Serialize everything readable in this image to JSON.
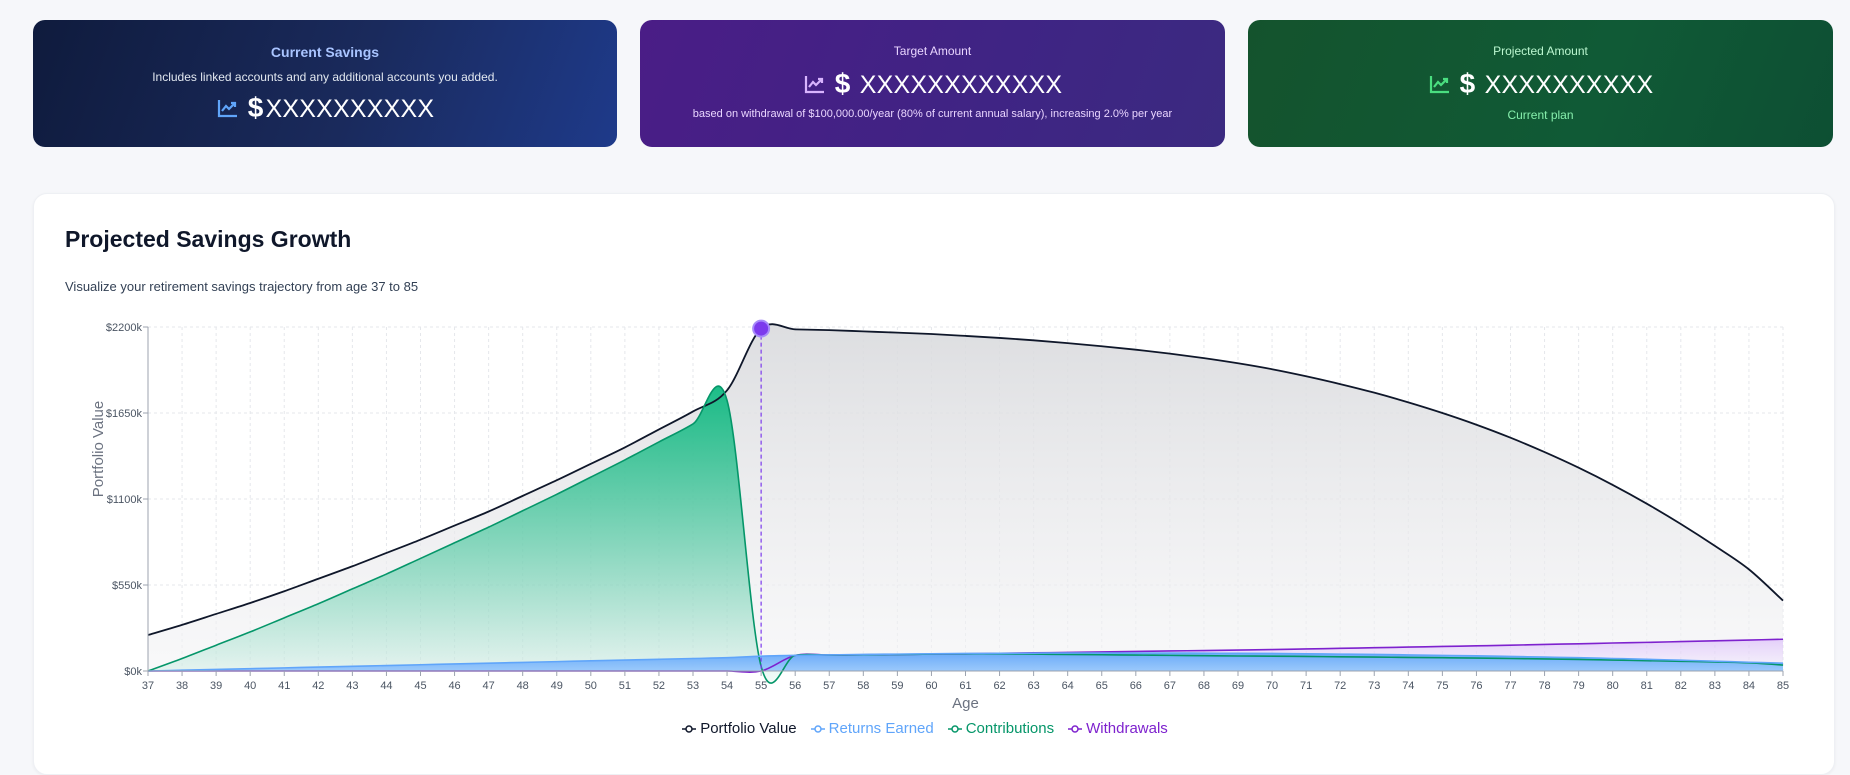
{
  "cards": {
    "current": {
      "title": "Current Savings",
      "subtitle": "Includes linked accounts and any additional accounts you added.",
      "dollar": "$",
      "amount": "XXXXXXXXXX",
      "icon": "trending-up-icon",
      "icon_color": "#60a5fa"
    },
    "target": {
      "title": "Target Amount",
      "dollar": "$",
      "amount": "XXXXXXXXXXXX",
      "subtitle": "based on withdrawal of $100,000.00/year (80% of current annual salary), increasing 2.0% per year",
      "icon": "trending-up-icon",
      "icon_color": "#d8b4fe"
    },
    "projected": {
      "title": "Projected Amount",
      "dollar": "$",
      "amount": "XXXXXXXXXX",
      "subtitle": "Current plan",
      "icon": "trending-up-icon",
      "icon_color": "#4ade80"
    }
  },
  "panel": {
    "title": "Projected Savings Growth",
    "description": "Visualize your retirement savings trajectory from age 37 to 85"
  },
  "chart_data": {
    "type": "area",
    "xlabel": "Age",
    "ylabel": "Portfolio Value",
    "x": [
      37,
      38,
      39,
      40,
      41,
      42,
      43,
      44,
      45,
      46,
      47,
      48,
      49,
      50,
      51,
      52,
      53,
      54,
      55,
      56,
      57,
      58,
      59,
      60,
      61,
      62,
      63,
      64,
      65,
      66,
      67,
      68,
      69,
      70,
      71,
      72,
      73,
      74,
      75,
      76,
      77,
      78,
      79,
      80,
      81,
      82,
      83,
      84,
      85
    ],
    "ylim": [
      0,
      2200
    ],
    "yticks": [
      0,
      550,
      1100,
      1650,
      2200
    ],
    "ytick_labels": [
      "$0k",
      "$550k",
      "$1100k",
      "$1650k",
      "$2200k"
    ],
    "grid": true,
    "legend_position": "bottom-center",
    "highlight": {
      "x": 55,
      "y": 2190,
      "color": "#7c3aed"
    },
    "series": [
      {
        "name": "Portfolio Value",
        "color": "#0f172a",
        "values": [
          230,
          295,
          365,
          435,
          510,
          590,
          670,
          755,
          840,
          930,
          1020,
          1120,
          1220,
          1325,
          1430,
          1545,
          1660,
          1795,
          2190,
          2185,
          2180,
          2172,
          2164,
          2155,
          2143,
          2130,
          2115,
          2097,
          2077,
          2055,
          2030,
          2001,
          1968,
          1930,
          1885,
          1835,
          1780,
          1718,
          1650,
          1575,
          1492,
          1400,
          1300,
          1190,
          1070,
          940,
          800,
          650,
          450
        ]
      },
      {
        "name": "Returns Earned",
        "color": "#60a5fa",
        "values": [
          0,
          5,
          10,
          15,
          20,
          25,
          30,
          35,
          40,
          45,
          50,
          55,
          60,
          65,
          70,
          75,
          80,
          85,
          95,
          100,
          103,
          106,
          108,
          110,
          112,
          113,
          114,
          115,
          115,
          115,
          115,
          114,
          113,
          112,
          110,
          108,
          106,
          103,
          100,
          97,
          93,
          89,
          85,
          80,
          75,
          69,
          63,
          56,
          50
        ]
      },
      {
        "name": "Contributions",
        "color": "#059669",
        "values": [
          0,
          80,
          165,
          250,
          340,
          430,
          525,
          620,
          720,
          820,
          920,
          1025,
          1130,
          1240,
          1350,
          1465,
          1580,
          1730,
          30,
          100,
          102,
          104,
          106,
          108,
          110,
          110,
          108,
          106,
          104,
          102,
          100,
          98,
          96,
          95,
          93,
          91,
          89,
          87,
          85,
          83,
          80,
          77,
          74,
          70,
          66,
          62,
          58,
          52,
          38
        ]
      },
      {
        "name": "Withdrawals",
        "color": "#7e22ce",
        "values": [
          0,
          0,
          0,
          0,
          0,
          0,
          0,
          0,
          0,
          0,
          0,
          0,
          0,
          0,
          0,
          0,
          0,
          0,
          0,
          100,
          102,
          104,
          106,
          108,
          110,
          113,
          116,
          119,
          122,
          125,
          128,
          131,
          134,
          137,
          141,
          145,
          149,
          153,
          157,
          161,
          165,
          170,
          174,
          179,
          183,
          188,
          193,
          198,
          203
        ]
      }
    ]
  }
}
